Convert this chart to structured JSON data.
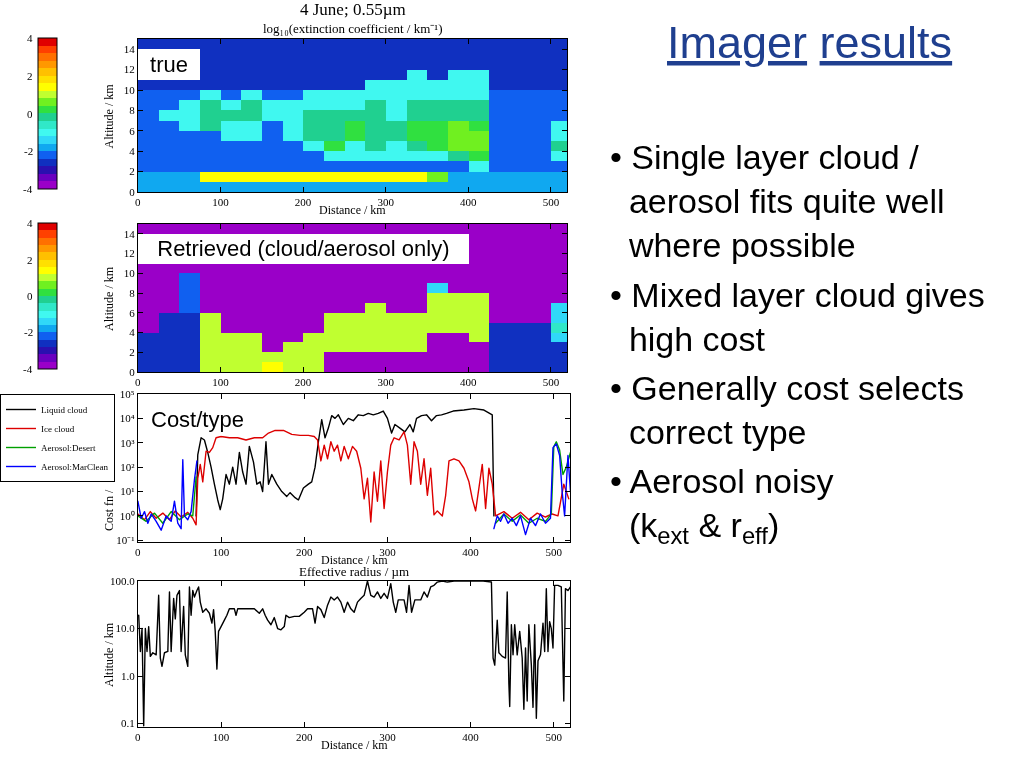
{
  "chart_data": [
    {
      "type": "heatmap",
      "title": "4 June; 0.55µm",
      "subtitle": "log₁₀(extinction coefficient / km⁻¹)",
      "xlabel": "Distance / km",
      "ylabel": "Altitude / km",
      "annotations": [
        "true"
      ],
      "x": [
        12.5,
        37.5,
        62.5,
        87.5,
        112.5,
        137.5,
        162.5,
        187.5,
        212.5,
        237.5,
        262.5,
        287.5,
        312.5,
        337.5,
        362.5,
        387.5,
        412.5,
        437.5,
        462.5,
        487.5,
        512.5
      ],
      "y": [
        14.5,
        13.5,
        12.5,
        11.5,
        10.5,
        9.5,
        8.5,
        7.5,
        6.5,
        5.5,
        4.5,
        3.5,
        2.5,
        1.5,
        0.5
      ],
      "cells": [
        [
          -2.6,
          -2.6,
          -2.6,
          -2.6,
          -2.6,
          -2.6,
          -2.6,
          -2.6,
          -2.6,
          -2.6,
          -2.6,
          -2.6,
          -2.6,
          -2.6,
          -2.6,
          -2.6,
          -2.6,
          -2.6,
          -2.6,
          -2.6,
          -2.6
        ],
        [
          null,
          null,
          null,
          -2.6,
          -2.6,
          -2.6,
          -2.6,
          -2.6,
          -2.6,
          -2.6,
          -2.6,
          -2.6,
          -2.6,
          -2.6,
          -2.6,
          -2.6,
          -2.6,
          -2.6,
          -2.6,
          -2.6,
          -2.6
        ],
        [
          null,
          null,
          null,
          -2.6,
          -2.6,
          -2.6,
          -2.6,
          -2.6,
          -2.6,
          -2.6,
          -2.6,
          -2.6,
          -2.6,
          -2.6,
          -2.6,
          -2.6,
          -2.6,
          -2.6,
          -2.6,
          -2.6,
          -2.6
        ],
        [
          null,
          null,
          null,
          -2.6,
          -2.6,
          -2.6,
          -2.6,
          -2.6,
          -2.6,
          -2.6,
          -2.6,
          -2.6,
          -2.6,
          -1.0,
          -2.6,
          -1.0,
          -1.0,
          -2.6,
          -2.6,
          -2.6,
          -2.6
        ],
        [
          -2.6,
          -2.6,
          -2.6,
          -2.6,
          -2.6,
          -2.6,
          -2.6,
          -2.6,
          -2.6,
          -2.6,
          -2.6,
          -1.0,
          -1.0,
          -1.0,
          -1.0,
          -1.0,
          -1.0,
          -2.6,
          -2.6,
          -2.6,
          -2.6
        ],
        [
          -2.2,
          -2.2,
          -2.2,
          -1.0,
          -2.2,
          -1.0,
          -2.2,
          -2.2,
          -1.0,
          -1.0,
          -1.0,
          -1.0,
          -1.0,
          -1.0,
          -1.0,
          -1.0,
          -1.0,
          -2.2,
          -2.2,
          -2.2,
          -2.2
        ],
        [
          -2.2,
          -2.2,
          -1.0,
          -0.2,
          -1.0,
          -0.2,
          -1.0,
          -1.0,
          -1.0,
          -1.0,
          -1.0,
          -0.2,
          -1.0,
          -0.2,
          -0.2,
          -0.2,
          -0.2,
          -2.2,
          -2.2,
          -2.2,
          -2.2
        ],
        [
          -2.2,
          -1.0,
          -1.0,
          -0.2,
          -0.2,
          -0.2,
          -1.0,
          -1.0,
          -0.2,
          -0.2,
          -0.2,
          -0.2,
          -1.0,
          -0.2,
          -0.2,
          -0.2,
          -0.2,
          -2.2,
          -2.2,
          -2.2,
          -2.2
        ],
        [
          -2.2,
          -2.2,
          -1.0,
          -0.2,
          -1.0,
          -1.0,
          -2.2,
          -1.0,
          -0.2,
          -0.2,
          0.2,
          -0.2,
          -0.2,
          0.2,
          0.2,
          0.6,
          0.2,
          -2.2,
          -2.2,
          -2.2,
          -1.0
        ],
        [
          -2.2,
          -2.2,
          -2.2,
          -2.2,
          -1.0,
          -1.0,
          -2.2,
          -1.0,
          -0.2,
          -0.2,
          0.2,
          -0.2,
          -0.2,
          0.2,
          0.2,
          0.6,
          0.6,
          -2.2,
          -2.2,
          -2.2,
          -1.0
        ],
        [
          -2.2,
          -2.2,
          -2.2,
          -2.2,
          -2.2,
          -2.2,
          -2.2,
          -2.2,
          -1.0,
          0.2,
          -1.0,
          -0.2,
          -1.0,
          -0.2,
          0.2,
          0.6,
          0.6,
          -2.2,
          -2.2,
          -2.2,
          -0.2
        ],
        [
          -2.2,
          -2.2,
          -2.2,
          -2.2,
          -2.2,
          -2.2,
          -2.2,
          -2.2,
          -2.2,
          -1.0,
          -1.0,
          -1.0,
          -1.0,
          -1.0,
          -1.0,
          -0.2,
          0.2,
          -2.2,
          -2.2,
          -2.2,
          -1.0
        ],
        [
          -2.2,
          -2.2,
          -2.2,
          -2.2,
          -2.2,
          -2.2,
          -2.2,
          -2.2,
          -2.2,
          -2.2,
          -2.2,
          -2.2,
          -2.2,
          -2.2,
          -2.2,
          -2.2,
          -1.0,
          -2.2,
          -2.2,
          -2.2,
          -2.2
        ],
        [
          -1.8,
          -1.8,
          -1.8,
          1.4,
          1.4,
          1.4,
          1.4,
          1.4,
          1.4,
          1.4,
          1.4,
          1.4,
          1.4,
          1.4,
          0.6,
          -1.8,
          -1.8,
          -1.8,
          -1.8,
          -1.8,
          -1.8
        ],
        [
          -1.8,
          -1.8,
          -1.8,
          -1.8,
          -1.8,
          -1.8,
          -1.8,
          -1.8,
          -1.8,
          -1.8,
          -1.8,
          -1.8,
          -1.8,
          -1.8,
          -1.8,
          -1.8,
          -1.8,
          -1.8,
          -1.8,
          -1.8,
          -1.8
        ]
      ],
      "xlim": [
        0,
        520
      ],
      "ylim": [
        0,
        15
      ],
      "xticks": [
        0,
        100,
        200,
        300,
        400,
        500
      ],
      "yticks": [
        0,
        2,
        4,
        6,
        8,
        10,
        12,
        14
      ],
      "clim": [
        -4,
        4
      ],
      "cticks": [
        4,
        2,
        0,
        -2,
        -4
      ]
    },
    {
      "type": "heatmap",
      "ylabel": "Altitude / km",
      "annotations": [
        "Retrieved (cloud/aerosol only)"
      ],
      "x": [
        12.5,
        37.5,
        62.5,
        87.5,
        112.5,
        137.5,
        162.5,
        187.5,
        212.5,
        237.5,
        262.5,
        287.5,
        312.5,
        337.5,
        362.5,
        387.5,
        412.5,
        437.5,
        462.5,
        487.5,
        512.5
      ],
      "y": [
        14.5,
        13.5,
        12.5,
        11.5,
        10.5,
        9.5,
        8.5,
        7.5,
        6.5,
        5.5,
        4.5,
        3.5,
        2.5,
        1.5,
        0.5
      ],
      "cells": [
        [
          -3.8,
          -3.8,
          -3.8,
          -3.8,
          -3.8,
          -3.8,
          -3.8,
          -3.8,
          -3.8,
          -3.8,
          -3.8,
          -3.8,
          -3.8,
          -3.8,
          -3.8,
          -3.8,
          -3.8,
          -3.8,
          -3.8,
          -3.8,
          -3.8
        ],
        [
          null,
          null,
          null,
          null,
          null,
          null,
          null,
          null,
          null,
          null,
          null,
          null,
          null,
          null,
          null,
          null,
          -3.8,
          -3.8,
          -3.8,
          -3.8,
          -3.8
        ],
        [
          null,
          null,
          null,
          null,
          null,
          null,
          null,
          null,
          null,
          null,
          null,
          null,
          null,
          null,
          null,
          null,
          -3.8,
          -3.8,
          -3.8,
          -3.8,
          -3.8
        ],
        [
          null,
          null,
          null,
          null,
          null,
          null,
          null,
          null,
          null,
          null,
          null,
          null,
          null,
          null,
          null,
          null,
          -3.8,
          -3.8,
          -3.8,
          -3.8,
          -3.8
        ],
        [
          -3.8,
          -3.8,
          -3.8,
          -3.8,
          -3.8,
          -3.8,
          -3.8,
          -3.8,
          -3.8,
          -3.8,
          -3.8,
          -3.8,
          -3.8,
          -3.8,
          -3.8,
          -3.8,
          -3.8,
          -3.8,
          -3.8,
          -3.8,
          -3.8
        ],
        [
          -3.8,
          -3.8,
          -2.2,
          -3.8,
          -3.8,
          -3.8,
          -3.8,
          -3.8,
          -3.8,
          -3.8,
          -3.8,
          -3.8,
          -3.8,
          -3.8,
          -3.8,
          -3.8,
          -3.8,
          -3.8,
          -3.8,
          -3.8,
          -3.8
        ],
        [
          -3.8,
          -3.8,
          -2.2,
          -3.8,
          -3.8,
          -3.8,
          -3.8,
          -3.8,
          -3.8,
          -3.8,
          -3.8,
          -3.8,
          -3.8,
          -3.8,
          -1.4,
          -3.8,
          -3.8,
          -3.8,
          -3.8,
          -3.8,
          -3.8
        ],
        [
          -3.8,
          -3.8,
          -2.2,
          -3.8,
          -3.8,
          -3.8,
          -3.8,
          -3.8,
          -3.8,
          -3.8,
          -3.8,
          -3.8,
          -3.8,
          -3.8,
          1.0,
          1.0,
          1.0,
          -3.8,
          -3.8,
          -3.8,
          -3.8
        ],
        [
          -3.8,
          -3.8,
          -2.2,
          -3.8,
          -3.8,
          -3.8,
          -3.8,
          -3.8,
          -3.8,
          -3.8,
          -3.8,
          1.0,
          -3.8,
          -3.8,
          1.0,
          1.0,
          1.0,
          -3.8,
          -3.8,
          -3.8,
          -1.4
        ],
        [
          -3.8,
          -2.6,
          -2.6,
          1.0,
          -3.8,
          -3.8,
          -3.8,
          -3.8,
          -3.8,
          1.0,
          1.0,
          1.0,
          1.0,
          1.0,
          1.0,
          1.0,
          1.0,
          -3.8,
          -3.8,
          -3.8,
          -1.4
        ],
        [
          -3.8,
          -2.6,
          -2.6,
          1.0,
          -3.8,
          -3.8,
          -3.8,
          -3.8,
          -3.8,
          1.0,
          1.0,
          1.0,
          1.0,
          1.0,
          1.0,
          1.0,
          1.0,
          -2.6,
          -2.6,
          -2.6,
          -0.6
        ],
        [
          -2.6,
          -2.6,
          -2.6,
          1.0,
          1.0,
          1.0,
          -3.8,
          -3.8,
          1.0,
          1.0,
          1.0,
          1.0,
          1.0,
          1.0,
          -3.8,
          -3.8,
          1.0,
          -2.6,
          -2.6,
          -2.6,
          -1.4
        ],
        [
          -2.6,
          -2.6,
          -2.6,
          1.0,
          1.0,
          1.0,
          -3.8,
          1.0,
          1.0,
          1.0,
          1.0,
          1.0,
          1.0,
          1.0,
          -3.8,
          -3.8,
          -3.8,
          -2.6,
          -2.6,
          -2.6,
          -2.6
        ],
        [
          -2.6,
          -2.6,
          -2.6,
          1.0,
          1.0,
          1.0,
          1.0,
          1.0,
          1.0,
          -3.8,
          -3.8,
          -3.8,
          -3.8,
          -3.8,
          -3.8,
          -3.8,
          -3.8,
          -2.6,
          -2.6,
          -2.6,
          -2.6
        ],
        [
          -2.6,
          -2.6,
          -2.6,
          1.0,
          1.0,
          1.0,
          1.4,
          1.0,
          1.0,
          -3.8,
          -3.8,
          -3.8,
          -3.8,
          -3.8,
          -3.8,
          -3.8,
          -3.8,
          -2.6,
          -2.6,
          -2.6,
          -2.6
        ]
      ],
      "xlim": [
        0,
        520
      ],
      "ylim": [
        0,
        15
      ],
      "xticks": [
        0,
        100,
        200,
        300,
        400,
        500
      ],
      "yticks": [
        0,
        2,
        4,
        6,
        8,
        10,
        12,
        14
      ],
      "clim": [
        -4,
        4
      ],
      "cticks": [
        4,
        2,
        0,
        -2,
        -4
      ]
    },
    {
      "type": "line",
      "xlabel": "Distance / km",
      "ylabel": "Cost fn /",
      "annotations": [
        "Cost/type"
      ],
      "log": "y",
      "legend": "left",
      "xlim": [
        0,
        520
      ],
      "ylim": [
        0.085,
        100000
      ],
      "xticks": [
        0,
        100,
        200,
        300,
        400,
        500
      ],
      "yticks": [
        {
          "value": 0.1,
          "label": "10⁻¹"
        },
        {
          "value": 1,
          "label": "10⁰"
        },
        {
          "value": 10,
          "label": "10¹"
        },
        {
          "value": 100,
          "label": "10²"
        },
        {
          "value": 1000,
          "label": "10³"
        },
        {
          "value": 10000,
          "label": "10⁴"
        },
        {
          "value": 100000,
          "label": "10⁵"
        }
      ],
      "series": [
        {
          "name": "Liquid cloud",
          "color": "#000000",
          "x": [
            70,
            72,
            76,
            80,
            84,
            88,
            92,
            96,
            99,
            102,
            106,
            110,
            114,
            118,
            122,
            126,
            130,
            134,
            139,
            143,
            147,
            150,
            154,
            157,
            161,
            167,
            173,
            179,
            183,
            189,
            193,
            199,
            205,
            209,
            213,
            217,
            221,
            225,
            229,
            233,
            237,
            241,
            247,
            253,
            259,
            265,
            271,
            277,
            283,
            289,
            295,
            300,
            305,
            309,
            315,
            321,
            327,
            331,
            335,
            341,
            347,
            353,
            359,
            365,
            371,
            379,
            392,
            404,
            416,
            426,
            428
          ],
          "values": [
            1,
            320,
            1600,
            1300,
            400,
            100,
            20,
            4.5,
            1.8,
            5,
            50,
            20,
            100,
            20,
            400,
            63,
            20,
            710,
            160,
            20,
            25,
            10,
            1100,
            20,
            50,
            20,
            10,
            6.3,
            9,
            5.6,
            4.5,
            14,
            20,
            25,
            100,
            1100,
            8900,
            1600,
            4000,
            13000,
            10000,
            14000,
            5600,
            10000,
            8000,
            14000,
            13000,
            16000,
            14000,
            16000,
            20000,
            10000,
            2500,
            5600,
            4000,
            2800,
            5600,
            2800,
            10000,
            13000,
            14000,
            8000,
            13000,
            14000,
            16000,
            20000,
            22000,
            25000,
            22000,
            14000,
            1
          ]
        },
        {
          "name": "Ice cloud",
          "color": "#dd0000",
          "x": [
            0,
            8,
            15,
            22,
            30,
            38,
            45,
            52,
            60,
            66,
            70,
            72,
            75,
            78,
            82,
            86,
            90,
            94,
            100,
            110,
            120,
            130,
            140,
            150,
            157,
            165,
            175,
            185,
            195,
            205,
            212,
            216,
            220,
            224,
            228,
            232,
            236,
            240,
            244,
            248,
            253,
            258,
            263,
            268,
            272,
            276,
            280,
            284,
            288,
            292,
            296,
            300,
            304,
            308,
            314,
            320,
            324,
            328,
            332,
            336,
            340,
            344,
            348,
            352,
            356,
            360,
            366,
            370,
            374,
            380,
            386,
            392,
            398,
            402,
            406,
            410,
            414,
            418,
            422,
            426,
            430,
            440,
            450,
            460,
            470,
            480,
            490,
            498,
            505,
            512,
            518
          ],
          "values": [
            1.2,
            0.7,
            1.5,
            0.8,
            1.3,
            0.7,
            1.6,
            0.9,
            1.4,
            0.8,
            0.43,
            35,
            130,
            25,
            450,
            400,
            630,
            1600,
            1800,
            1600,
            1600,
            1300,
            1600,
            1600,
            2500,
            3200,
            3200,
            2200,
            2000,
            2000,
            1800,
            1300,
            180,
            800,
            220,
            1100,
            450,
            800,
            180,
            710,
            220,
            710,
            450,
            90,
            5,
            35,
            0.56,
            63,
            4,
            180,
            2,
            63,
            800,
            1600,
            1300,
            2800,
            800,
            20,
            1100,
            450,
            20,
            220,
            7,
            90,
            1.1,
            1.6,
            1,
            7,
            180,
            220,
            180,
            90,
            25,
            5,
            1.6,
            14,
            130,
            2,
            90,
            20,
            1,
            1.5,
            0.8,
            1.4,
            0.7,
            1.3,
            0.9,
            1.2,
            1,
            20,
            5
          ]
        },
        {
          "name": "Aerosol:Desert",
          "color": "#00a000",
          "x": [
            0,
            10,
            20,
            30,
            40,
            50,
            60,
            66,
            70,
            71,
            430,
            440,
            450,
            460,
            470,
            480,
            490,
            497,
            500,
            503,
            507,
            511,
            515,
            520
          ],
          "values": [
            1.0,
            0.6,
            1.3,
            0.5,
            1.5,
            0.7,
            1.2,
            1.0,
            40,
            null,
            0.5,
            1.2,
            0.6,
            1.1,
            0.5,
            0.8,
            0.6,
            1.2,
            700,
            1100,
            500,
            50,
            100,
            400
          ]
        },
        {
          "name": "Aerosol:MarClean",
          "color": "#0000ff",
          "x": [
            0,
            4,
            8,
            12,
            16,
            22,
            28,
            34,
            40,
            44,
            48,
            52,
            54,
            56,
            60,
            64,
            68,
            71,
            72,
            428,
            432,
            436,
            440,
            445,
            450,
            455,
            460,
            466,
            472,
            478,
            484,
            490,
            496,
            499,
            503,
            507,
            510,
            513,
            517,
            520
          ],
          "values": [
            4,
            0.8,
            1.5,
            0.5,
            1.2,
            0.6,
            0.26,
            1.0,
            0.6,
            4,
            0.5,
            0.3,
            200,
            1.0,
            0.7,
            1.5,
            30,
            180,
            null,
            0.3,
            1.0,
            0.6,
            1.2,
            0.5,
            0.8,
            0.4,
            1.0,
            0.17,
            0.8,
            0.4,
            1.2,
            0.5,
            0.8,
            630,
            900,
            300,
            10,
            1.0,
            300,
            10
          ]
        }
      ]
    },
    {
      "type": "line",
      "title": "Effective radius / µm",
      "xlabel": "Distance / km",
      "ylabel": "Altitude / km",
      "log": "y",
      "xlim": [
        0,
        520
      ],
      "ylim": [
        0.085,
        100
      ],
      "xticks": [
        0,
        100,
        200,
        300,
        400,
        500
      ],
      "yticks": [
        0.1,
        {
          "value": 1,
          "label": "1.0"
        },
        {
          "value": 10,
          "label": "10.0"
        },
        {
          "value": 100,
          "label": "100.0"
        }
      ],
      "series": [
        {
          "color": "#000000",
          "x": [
            1,
            3,
            5,
            7,
            9,
            11,
            13,
            15,
            18,
            22,
            25,
            27,
            29,
            32,
            36,
            38,
            40,
            43,
            45,
            47,
            50,
            52,
            55,
            57,
            60,
            62,
            64,
            66,
            68,
            71,
            73,
            75,
            78,
            82,
            86,
            89,
            91,
            93,
            95,
            97,
            100,
            104,
            107,
            110,
            116,
            118,
            120,
            130,
            140,
            146,
            150,
            153,
            156,
            160,
            164,
            168,
            172,
            176,
            178,
            182,
            188,
            194,
            200,
            204,
            210,
            213,
            216,
            220,
            224,
            228,
            232,
            236,
            240,
            244,
            248,
            252,
            256,
            260,
            264,
            268,
            272,
            276,
            280,
            284,
            288,
            292,
            296,
            300,
            304,
            307,
            310,
            313,
            320,
            323,
            326,
            329,
            333,
            340,
            344,
            348,
            352,
            356,
            360,
            366,
            372,
            380,
            400,
            415,
            425,
            427,
            429,
            432,
            434,
            438,
            442,
            444,
            446,
            447,
            449,
            451,
            453,
            456,
            459,
            462,
            464,
            466,
            468,
            470,
            473,
            475,
            477,
            479,
            481,
            484,
            487,
            489,
            491,
            493,
            495,
            497,
            499,
            501,
            505,
            509,
            512,
            514,
            517,
            520
          ],
          "values": [
            19,
            3.3,
            10,
            0.09,
            10,
            3.3,
            11,
            2.6,
            3.1,
            2.8,
            50,
            2.4,
            1.6,
            3.1,
            3.3,
            59,
            3.3,
            43,
            16,
            50,
            63,
            3.3,
            29,
            2.8,
            1.6,
            75,
            19,
            63,
            46,
            63,
            75,
            36,
            22,
            26,
            21,
            13,
            25,
            8.7,
            1.4,
            8.7,
            11,
            15,
            19,
            26,
            26,
            19,
            26,
            26,
            26,
            21,
            26,
            19,
            15,
            12,
            17,
            10,
            9.4,
            11,
            19,
            17,
            18,
            18,
            22,
            26,
            26,
            13,
            29,
            25,
            17,
            31,
            46,
            40,
            46,
            36,
            22,
            36,
            26,
            22,
            36,
            43,
            50,
            100,
            50,
            46,
            59,
            43,
            55,
            43,
            88,
            36,
            22,
            40,
            40,
            22,
            81,
            22,
            40,
            40,
            59,
            46,
            75,
            81,
            95,
            100,
            95,
            100,
            100,
            100,
            95,
            2.4,
            1.7,
            15,
            3.1,
            2.6,
            2.4,
            59,
            0.68,
            0.23,
            12,
            2.8,
            12,
            2.8,
            8.7,
            2.4,
            0.2,
            3.9,
            0.3,
            12,
            1.7,
            0.22,
            12,
            0.13,
            2.1,
            2.8,
            13,
            3.3,
            69,
            3.3,
            14,
            10,
            3.9,
            81,
            81,
            75,
            0.3,
            69,
            63,
            75
          ]
        }
      ]
    },
    {
      "type": "other",
      "title": "Imager results",
      "annotations": [
        "• Single layer cloud / aerosol fits quite well where possible",
        "• Mixed layer cloud gives high cost",
        "• Generally cost selects correct type",
        "• Aerosol noisy\n(k$_{ext}$ & r$_{eff}$)"
      ]
    }
  ]
}
